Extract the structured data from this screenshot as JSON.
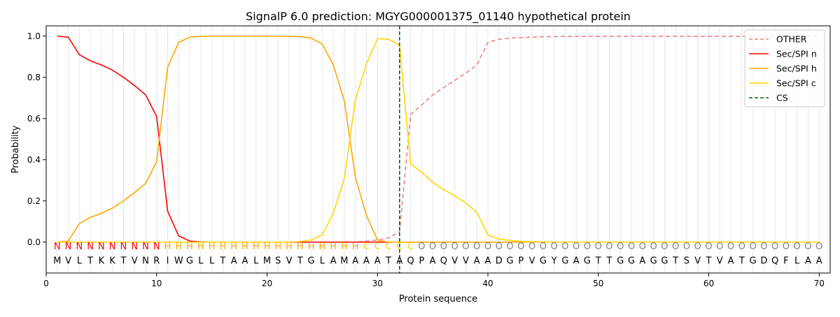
{
  "chart_data": {
    "type": "line",
    "title": "SignalP 6.0 prediction: MGYG000001375_01140 hypothetical protein",
    "xlabel": "Protein sequence",
    "ylabel": "Probability",
    "xlim": [
      0,
      71
    ],
    "ylim": [
      -0.15,
      1.05
    ],
    "xticks": [
      0,
      10,
      20,
      30,
      40,
      50,
      60,
      70
    ],
    "yticks": [
      0.0,
      0.2,
      0.4,
      0.6,
      0.8,
      1.0
    ],
    "ytick_labels": [
      "0.0",
      "0.2",
      "0.4",
      "0.6",
      "0.8",
      "1.0"
    ],
    "grid": "vertical lines at each residue",
    "legend_position": "top-right",
    "sequence": "MVLTKKTVNRIWGLLTAALMSVTGLAMAAATAQPAQVVAADGPVGYGAGTTGGAGGTSVTVATGDQFLAA",
    "labels": "NNNNNNNNNNHHHHHHHHHHHHHHHHHHCCCCCOOOOOOOOOOOOOOOOOOOOOOOOOOOOOOOOOOOOOO",
    "label_colors": {
      "N": "#ff0000",
      "H": "#ffa500",
      "C": "#ffd700",
      "O": "#808080"
    },
    "series": [
      {
        "name": "OTHER",
        "color": "#f08080",
        "dash": "dashed",
        "values": [
          0.0,
          0.0,
          0.0,
          0.0,
          0.0,
          0.0,
          0.0,
          0.0,
          0.0,
          0.0,
          0.0,
          0.0,
          0.0,
          0.0,
          0.0,
          0.0,
          0.0,
          0.0,
          0.0,
          0.0,
          0.0,
          0.0,
          0.0,
          0.0,
          0.0,
          0.0,
          0.0,
          0.0,
          0.005,
          0.01,
          0.02,
          0.05,
          0.62,
          0.665,
          0.715,
          0.75,
          0.785,
          0.82,
          0.86,
          0.97,
          0.985,
          0.99,
          0.993,
          0.995,
          0.997,
          0.998,
          0.999,
          0.999,
          0.999,
          0.999,
          0.999,
          0.999,
          0.999,
          0.999,
          0.999,
          0.999,
          0.999,
          0.999,
          0.999,
          0.999,
          0.999,
          0.999,
          0.999,
          0.999,
          0.999,
          0.999,
          0.999,
          0.999,
          0.999,
          0.999
        ]
      },
      {
        "name": "Sec/SPI n",
        "color": "#ff0000",
        "dash": "solid",
        "values": [
          1.0,
          0.995,
          0.91,
          0.88,
          0.86,
          0.835,
          0.8,
          0.76,
          0.715,
          0.61,
          0.15,
          0.03,
          0.005,
          0.001,
          0.0,
          0.0,
          0.0,
          0.0,
          0.0,
          0.0,
          0.0,
          0.0,
          0.0,
          0.0,
          0.0,
          0.0,
          0.0,
          0.0,
          0.0,
          0.0,
          0.0,
          0.0,
          0.0,
          0.0,
          0.0,
          0.0,
          0.0,
          0.0,
          0.0,
          0.0,
          0.0,
          0.0,
          0.0,
          0.0,
          0.0,
          0.0,
          0.0,
          0.0,
          0.0,
          0.0,
          0.0,
          0.0,
          0.0,
          0.0,
          0.0,
          0.0,
          0.0,
          0.0,
          0.0,
          0.0,
          0.0,
          0.0,
          0.0,
          0.0,
          0.0,
          0.0,
          0.0,
          0.0,
          0.0,
          0.0
        ]
      },
      {
        "name": "Sec/SPI h",
        "color": "#ffa500",
        "dash": "solid",
        "values": [
          0.0,
          0.005,
          0.09,
          0.12,
          0.14,
          0.165,
          0.2,
          0.24,
          0.285,
          0.39,
          0.85,
          0.97,
          0.995,
          0.999,
          1.0,
          1.0,
          1.0,
          1.0,
          1.0,
          1.0,
          1.0,
          0.999,
          0.998,
          0.99,
          0.962,
          0.86,
          0.685,
          0.315,
          0.13,
          0.01,
          0.0,
          0.0,
          0.0,
          0.0,
          0.0,
          0.0,
          0.0,
          0.0,
          0.0,
          0.0,
          0.0,
          0.0,
          0.0,
          0.0,
          0.0,
          0.0,
          0.0,
          0.0,
          0.0,
          0.0,
          0.0,
          0.0,
          0.0,
          0.0,
          0.0,
          0.0,
          0.0,
          0.0,
          0.0,
          0.0,
          0.0,
          0.0,
          0.0,
          0.0,
          0.0,
          0.0,
          0.0,
          0.0,
          0.0,
          0.0
        ]
      },
      {
        "name": "Sec/SPI c",
        "color": "#ffd700",
        "dash": "solid",
        "values": [
          0.0,
          0.0,
          0.0,
          0.0,
          0.0,
          0.0,
          0.0,
          0.0,
          0.0,
          0.0,
          0.0,
          0.0,
          0.0,
          0.0,
          0.0,
          0.0,
          0.0,
          0.0,
          0.0,
          0.0,
          0.0,
          0.0,
          0.003,
          0.01,
          0.035,
          0.14,
          0.31,
          0.69,
          0.865,
          0.988,
          0.985,
          0.955,
          0.38,
          0.34,
          0.29,
          0.255,
          0.225,
          0.19,
          0.145,
          0.035,
          0.015,
          0.008,
          0.004,
          0.002,
          0.001,
          0.0,
          0.0,
          0.0,
          0.0,
          0.0,
          0.0,
          0.0,
          0.0,
          0.0,
          0.0,
          0.0,
          0.0,
          0.0,
          0.0,
          0.0,
          0.0,
          0.0,
          0.0,
          0.0,
          0.0,
          0.0,
          0.0,
          0.0,
          0.0,
          0.0
        ]
      },
      {
        "name": "CS",
        "color": "#006400",
        "dash": "dashed",
        "cleavage_position": 32
      }
    ]
  }
}
